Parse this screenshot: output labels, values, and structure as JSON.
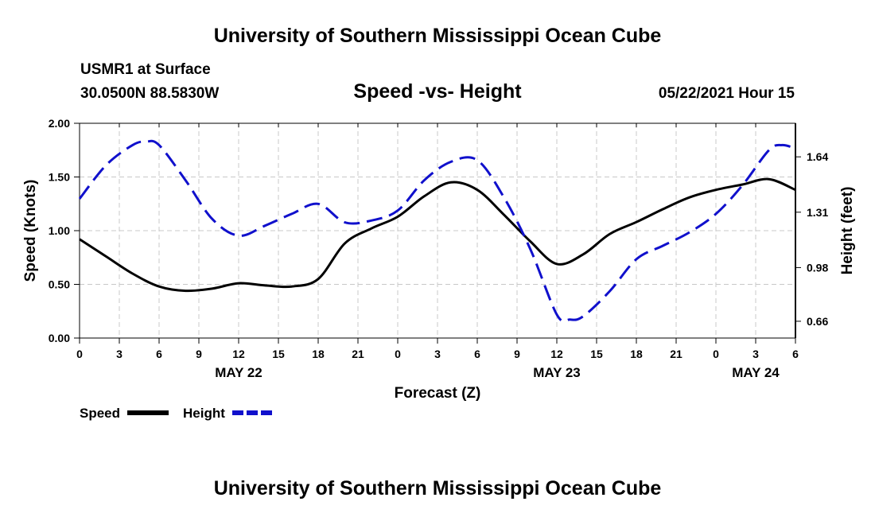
{
  "page": {
    "title_top": "University of Southern Mississippi Ocean Cube",
    "title_bottom": "University of Southern Mississippi Ocean Cube",
    "station": "USMR1 at Surface",
    "coords": "30.0500N  88.5830W",
    "chart_title": "Speed -vs- Height",
    "datetime": "05/22/2021 Hour 15"
  },
  "colors": {
    "speed": "#000000",
    "height": "#1010cc",
    "grid": "#c8c8c8"
  },
  "chart_data": {
    "type": "line",
    "title": "Speed -vs- Height",
    "xlabel": "Forecast (Z)",
    "ylabel": "Speed (Knots)",
    "y2label": "Height (feet)",
    "x_range": [
      0,
      54
    ],
    "ylim": [
      0,
      2
    ],
    "y2lim": [
      0.56,
      1.84
    ],
    "x_ticks": [
      0,
      3,
      6,
      9,
      12,
      15,
      18,
      21,
      24,
      27,
      30,
      33,
      36,
      39,
      42,
      45,
      48,
      51,
      54
    ],
    "x_tick_labels": [
      "0",
      "3",
      "6",
      "9",
      "12",
      "15",
      "18",
      "21",
      "0",
      "3",
      "6",
      "9",
      "12",
      "15",
      "18",
      "21",
      "0",
      "3",
      "6"
    ],
    "y_ticks": [
      0.0,
      0.5,
      1.0,
      1.5,
      2.0
    ],
    "y_tick_labels": [
      "0.00",
      "0.50",
      "1.00",
      "1.50",
      "2.00"
    ],
    "y2_ticks": [
      0.66,
      0.98,
      1.31,
      1.64
    ],
    "y2_tick_labels": [
      "0.66",
      "0.98",
      "1.31",
      "1.64"
    ],
    "date_labels": [
      {
        "x": 12,
        "label": "MAY 22"
      },
      {
        "x": 36,
        "label": "MAY 23"
      },
      {
        "x": 51,
        "label": "MAY 24"
      }
    ],
    "grid": true,
    "legend_position": "bottom-left",
    "series": [
      {
        "name": "Speed",
        "axis": "left",
        "style": "solid",
        "x": [
          0,
          2,
          4,
          6,
          8,
          10,
          12,
          14,
          16,
          18,
          20,
          22,
          24,
          26,
          28,
          30,
          32,
          34,
          36,
          38,
          40,
          42,
          44,
          46,
          48,
          50,
          52,
          54
        ],
        "values": [
          0.92,
          0.76,
          0.6,
          0.48,
          0.44,
          0.46,
          0.51,
          0.49,
          0.48,
          0.55,
          0.88,
          1.02,
          1.13,
          1.32,
          1.45,
          1.38,
          1.15,
          0.9,
          0.69,
          0.78,
          0.97,
          1.08,
          1.2,
          1.31,
          1.38,
          1.43,
          1.48,
          1.38
        ]
      },
      {
        "name": "Height",
        "axis": "right",
        "style": "dashed",
        "x": [
          0,
          2,
          4,
          5,
          6,
          8,
          10,
          12,
          14,
          16,
          18,
          20,
          22,
          24,
          26,
          28,
          30,
          32,
          34,
          36,
          37,
          38,
          40,
          42,
          44,
          46,
          48,
          50,
          52,
          53,
          54
        ],
        "values": [
          1.39,
          1.59,
          1.71,
          1.73,
          1.71,
          1.5,
          1.27,
          1.17,
          1.23,
          1.3,
          1.36,
          1.25,
          1.26,
          1.32,
          1.5,
          1.61,
          1.62,
          1.4,
          1.09,
          0.7,
          0.67,
          0.69,
          0.84,
          1.03,
          1.11,
          1.19,
          1.3,
          1.47,
          1.68,
          1.71,
          1.69
        ]
      }
    ]
  }
}
